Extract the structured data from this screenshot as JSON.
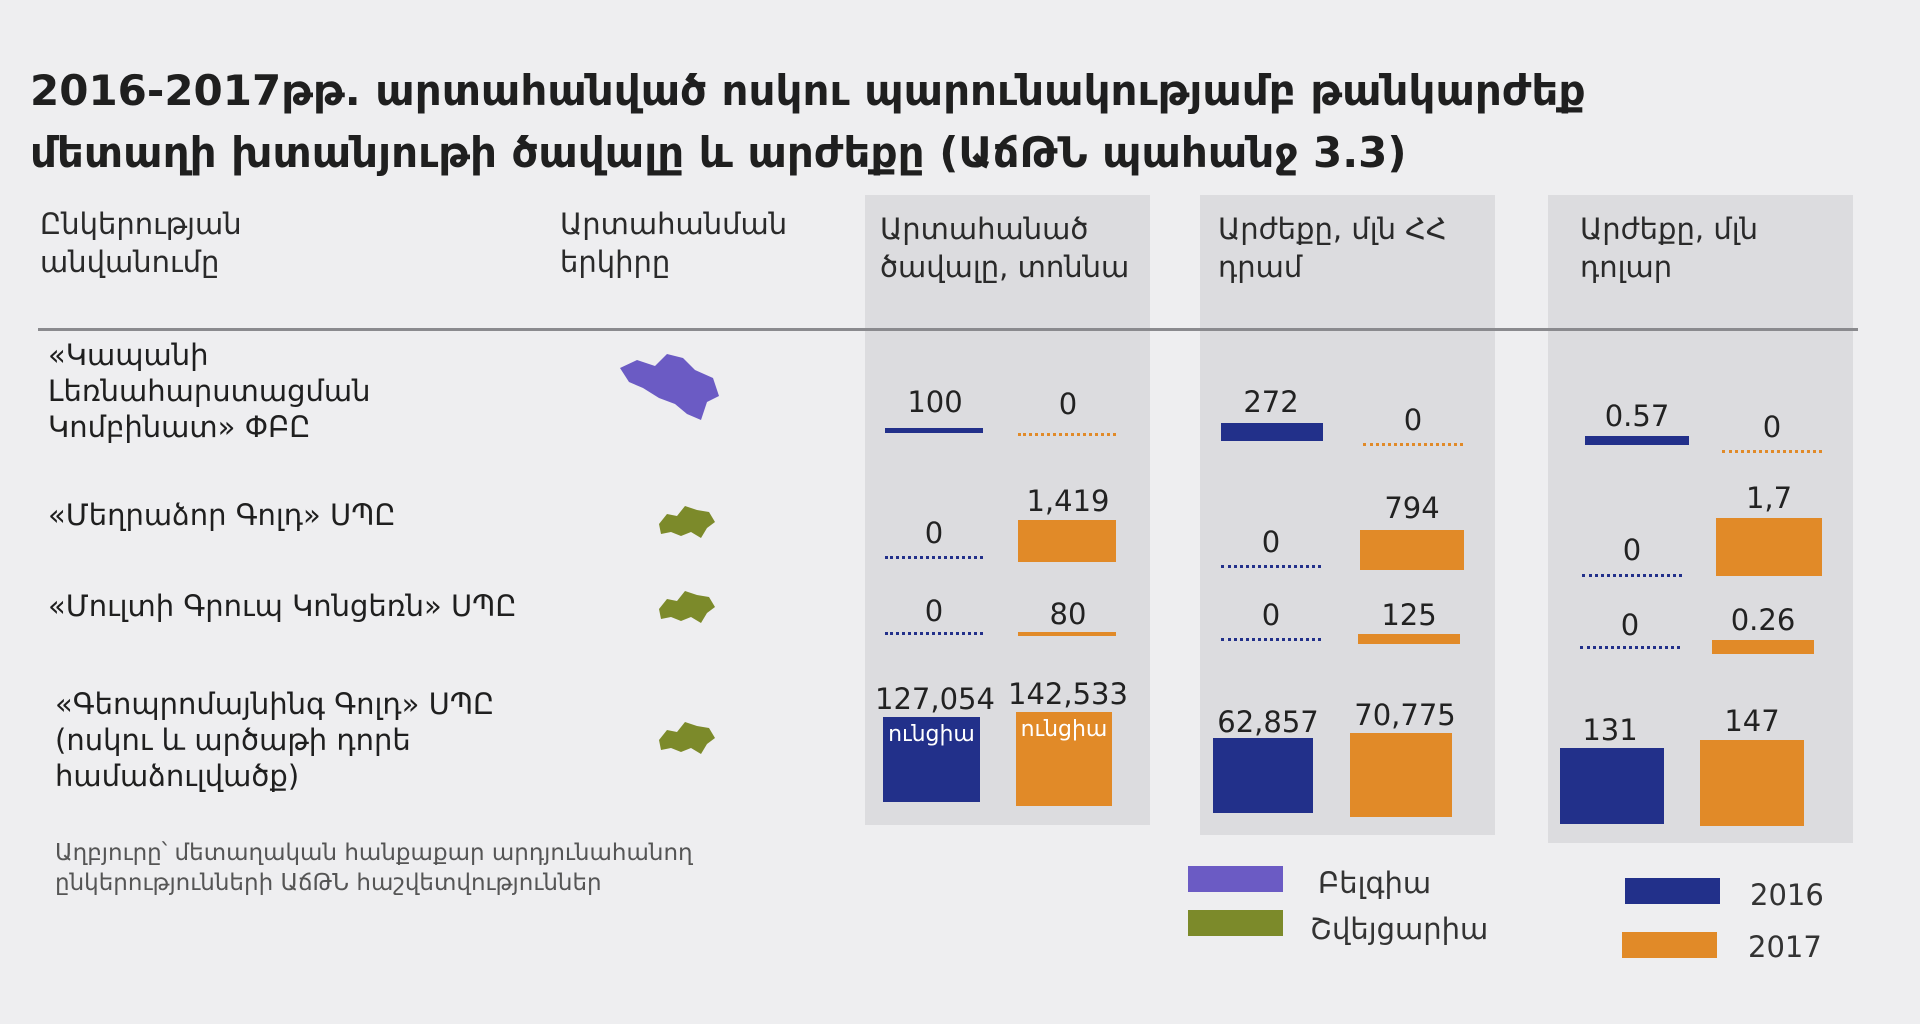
{
  "title": "2016-2017թթ. արտահանված ոսկու պարունակությամբ թանկարժեք մետաղի խտանյութի ծավալը և արժեքը (ԱճԹՆ պահանջ 3.3)",
  "headers": {
    "company": "Ընկերության անվանումը",
    "country": "Արտահանման երկիրը",
    "volume": "Արտահանած ծավալը, տոննա",
    "value_amd": "Արժեքը, մլն ՀՀ դրամ",
    "value_usd": "Արժեքը, մլն դոլար"
  },
  "colors": {
    "y2016": "#22308a",
    "y2017": "#e18a28",
    "belgium": "#6b5bc4",
    "switzerland": "#7c8a2a"
  },
  "source": "Աղբյուրը՝ մետաղական հանքաքար արդյունահանող ընկերությունների ԱճԹՆ հաշվետվություններ",
  "legend": {
    "belgium": "Բելգիա",
    "switzerland": "Շվեյցարիա",
    "y2016": "2016",
    "y2017": "2017"
  },
  "chart_data": {
    "type": "bar",
    "rows": [
      {
        "company": "«Կապանի Լեռնահարստացման Կոմբինատ» ՓԲԸ",
        "country_icon": "belgium-map-icon",
        "volume": {
          "v2016": "100",
          "v2017": "0"
        },
        "value_amd": {
          "v2016": "272",
          "v2017": "0"
        },
        "value_usd": {
          "v2016": "0.57",
          "v2017": "0"
        }
      },
      {
        "company": "«Մեղրաձոր Գոլդ» ՍՊԸ",
        "country_icon": "switzerland-map-icon",
        "volume": {
          "v2016": "0",
          "v2017": "1,419"
        },
        "value_amd": {
          "v2016": "0",
          "v2017": "794"
        },
        "value_usd": {
          "v2016": "0",
          "v2017": "1,7"
        }
      },
      {
        "company": "«Մուլտի Գրուպ Կոնցեռն» ՍՊԸ",
        "country_icon": "switzerland-map-icon",
        "volume": {
          "v2016": "0",
          "v2017": "80"
        },
        "value_amd": {
          "v2016": "0",
          "v2017": "125"
        },
        "value_usd": {
          "v2016": "0",
          "v2017": "0.26"
        }
      },
      {
        "company": "«Գեոպրոմայնինգ Գոլդ» ՍՊԸ (ոսկու և արծաթի դորե համաձուլվածք)",
        "country_icon": "switzerland-map-icon",
        "volume": {
          "v2016": "127,054",
          "v2017": "142,533",
          "unit_note": "ունցիա"
        },
        "value_amd": {
          "v2016": "62,857",
          "v2017": "70,775"
        },
        "value_usd": {
          "v2016": "131",
          "v2017": "147"
        }
      }
    ]
  }
}
